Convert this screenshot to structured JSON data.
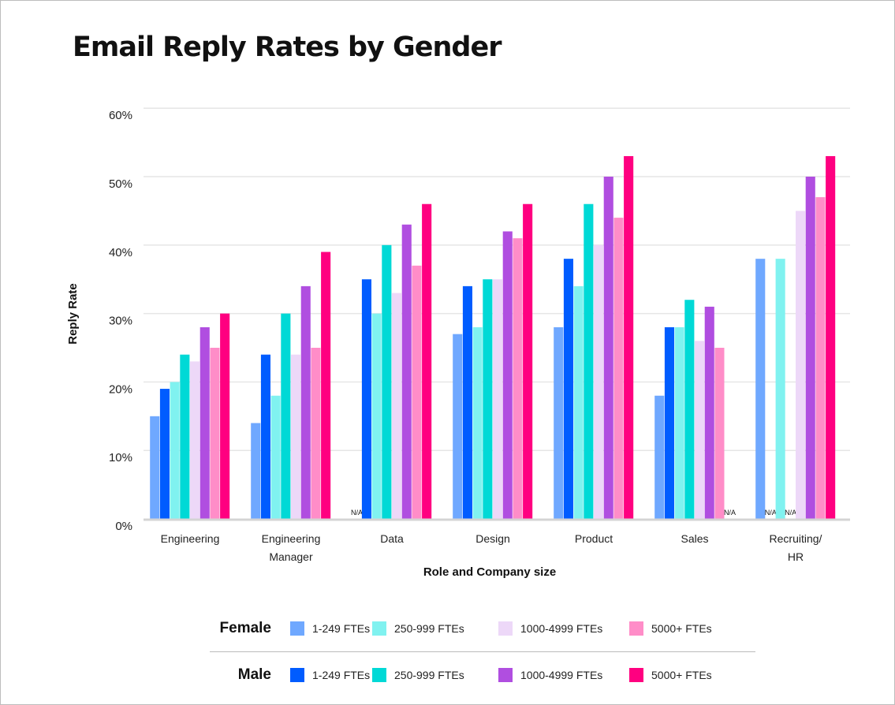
{
  "chart_data": {
    "type": "bar",
    "title": "Email Reply Rates by Gender",
    "xlabel": "Role and Company size",
    "ylabel": "Reply Rate",
    "ylim": [
      0,
      60
    ],
    "yticks": [
      "0%",
      "10%",
      "20%",
      "30%",
      "40%",
      "50%",
      "60%"
    ],
    "grid": true,
    "legend_position": "bottom",
    "na_label": "N/A",
    "categories": [
      [
        "Engineering"
      ],
      [
        "Engineering",
        "Manager"
      ],
      [
        "Data"
      ],
      [
        "Design"
      ],
      [
        "Product"
      ],
      [
        "Sales"
      ],
      [
        "Recruiting/",
        "HR"
      ]
    ],
    "series": [
      {
        "gender": "Female",
        "name": "1-249 FTEs",
        "color": "#6FA8FF",
        "values": [
          15,
          14,
          null,
          27,
          28,
          18,
          38
        ]
      },
      {
        "gender": "Male",
        "name": "1-249 FTEs",
        "color": "#005CFF",
        "values": [
          19,
          24,
          35,
          34,
          38,
          28,
          null
        ]
      },
      {
        "gender": "Female",
        "name": "250-999 FTEs",
        "color": "#80F2F0",
        "values": [
          20,
          18,
          30,
          28,
          34,
          28,
          38
        ]
      },
      {
        "gender": "Male",
        "name": "250-999 FTEs",
        "color": "#00D9D6",
        "values": [
          24,
          30,
          40,
          35,
          46,
          32,
          null
        ]
      },
      {
        "gender": "Female",
        "name": "1000-4999 FTEs",
        "color": "#EDD8F8",
        "values": [
          23,
          24,
          33,
          35,
          40,
          26,
          45
        ]
      },
      {
        "gender": "Male",
        "name": "1000-4999 FTEs",
        "color": "#B04EE0",
        "values": [
          28,
          34,
          43,
          42,
          50,
          31,
          50
        ]
      },
      {
        "gender": "Female",
        "name": "5000+ FTEs",
        "color": "#FF8DC8",
        "values": [
          25,
          25,
          37,
          41,
          44,
          25,
          47
        ]
      },
      {
        "gender": "Male",
        "name": "5000+ FTEs",
        "color": "#FF0080",
        "values": [
          30,
          39,
          46,
          46,
          53,
          null,
          53
        ]
      }
    ]
  },
  "legend": {
    "female_label": "Female",
    "male_label": "Male"
  }
}
